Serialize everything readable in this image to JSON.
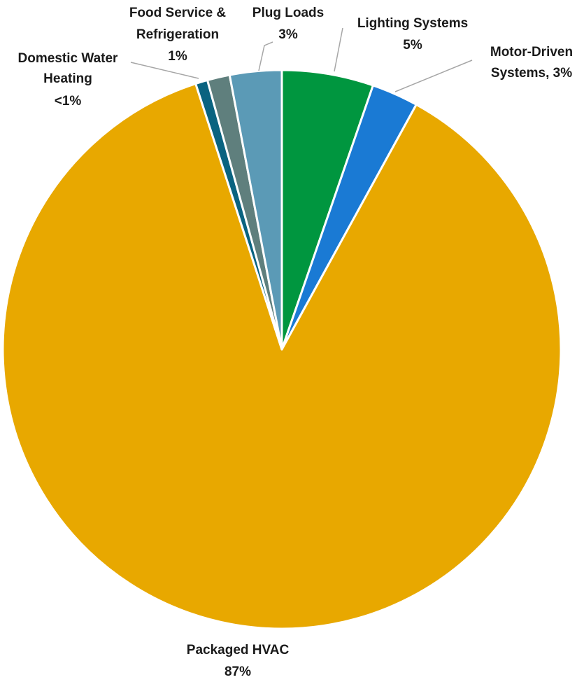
{
  "chart_data": {
    "type": "pie",
    "title": "",
    "start_angle_deg": 0,
    "direction": "clockwise",
    "slices": [
      {
        "name": "Lighting Systems",
        "value": 5.3,
        "label_lines": [
          "Lighting Systems",
          "5%"
        ],
        "color": "#00963f"
      },
      {
        "name": "Motor-Driven Systems",
        "value": 2.7,
        "label_lines": [
          "Motor-Driven",
          "Systems, 3%"
        ],
        "color": "#1a7ad4"
      },
      {
        "name": "Packaged HVAC",
        "value": 87.0,
        "label_lines": [
          "Packaged HVAC",
          "87%"
        ],
        "color": "#e8a800"
      },
      {
        "name": "Domestic Water Heating",
        "value": 0.7,
        "label_lines": [
          "Domestic Water",
          "Heating",
          "<1%"
        ],
        "color": "#0a6380"
      },
      {
        "name": "Food Service & Refrigeration",
        "value": 1.3,
        "label_lines": [
          "Food Service &",
          "Refrigeration",
          "1%"
        ],
        "color": "#5f7f7d"
      },
      {
        "name": "Plug Loads",
        "value": 3.0,
        "label_lines": [
          "Plug Loads",
          "3%"
        ],
        "color": "#5b9ab6"
      }
    ],
    "legend": "none"
  }
}
